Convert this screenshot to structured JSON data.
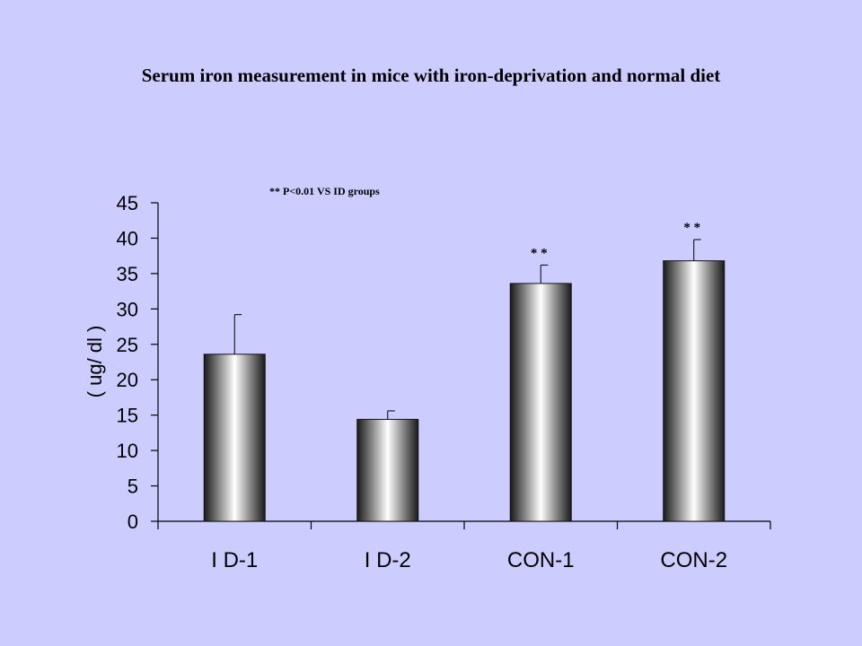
{
  "title": "Serum iron measurement in mice with iron-deprivation and normal diet",
  "note": "** P<0.01 VS ID groups",
  "chart_data": {
    "type": "bar",
    "categories": [
      "I D-1",
      "I D-2",
      "CON-1",
      "CON-2"
    ],
    "values": [
      23.6,
      14.4,
      33.6,
      36.8
    ],
    "errors": [
      5.6,
      1.2,
      2.6,
      3.0
    ],
    "annotations": [
      "",
      "",
      "* *",
      "* *"
    ],
    "ylabel": "( ug/ dl )",
    "ylim": [
      0,
      45
    ],
    "yticks": [
      0,
      5,
      10,
      15,
      20,
      25,
      30,
      35,
      40,
      45
    ],
    "grid": false,
    "legend": "none"
  },
  "colors": {
    "background": "#ccccff",
    "bar_edge": "#1a1a1a",
    "bar_highlight": "#ffffff"
  }
}
